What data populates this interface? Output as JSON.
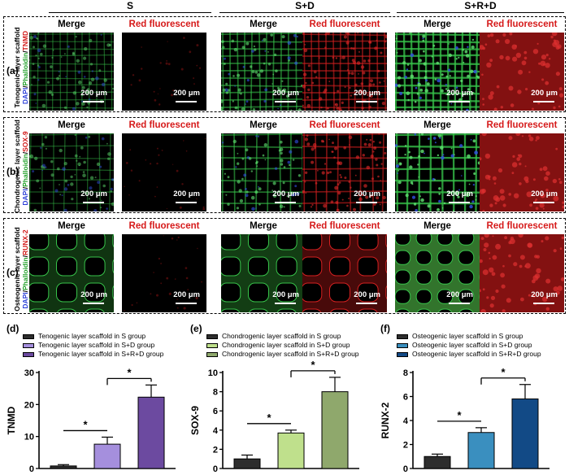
{
  "groups": [
    "S",
    "S+D",
    "S+R+D"
  ],
  "column_titles": {
    "merge": "Merge",
    "red": "Red fluorescent"
  },
  "scale_label": "200 μm",
  "rows": [
    {
      "label": "(a)",
      "scaffold": "Tenogenic layer scaffold",
      "stain_dapi": "DAPI",
      "stain_phalloidin": "Phalloidin",
      "stain_marker": "TNMD"
    },
    {
      "label": "(b)",
      "scaffold": "Chondrogenic layer scaffold",
      "stain_dapi": "DAPI",
      "stain_phalloidin": "Phalloidin",
      "stain_marker": "SOX-9"
    },
    {
      "label": "(c)",
      "scaffold": "Osteogenic layer scaffold",
      "stain_dapi": "DAPI",
      "stain_phalloidin": "Phalloidin",
      "stain_marker": "RUNX-2"
    }
  ],
  "chart_data": [
    {
      "panel": "(d)",
      "type": "bar",
      "ylabel": "TNMD",
      "ylim": [
        0,
        30
      ],
      "yticks": [
        0,
        10,
        20,
        30
      ],
      "categories": [
        "S",
        "S+D",
        "S+R+D"
      ],
      "values": [
        0.8,
        7.6,
        22.3
      ],
      "errors": [
        0.4,
        2.2,
        3.8
      ],
      "colors": [
        "#2d2d2d",
        "#a58fdd",
        "#6c4aa0"
      ],
      "legend": [
        "Tenogenic layer scaffold in S group",
        "Tenogenic layer scaffold in S+D group",
        "Tenogenic layer scaffold in S+R+D group"
      ],
      "significance": [
        {
          "from": 0,
          "to": 1,
          "label": "*"
        },
        {
          "from": 1,
          "to": 2,
          "label": "*"
        }
      ]
    },
    {
      "panel": "(e)",
      "type": "bar",
      "ylabel": "SOX-9",
      "ylim": [
        0,
        10
      ],
      "yticks": [
        0,
        2,
        4,
        6,
        8,
        10
      ],
      "categories": [
        "S",
        "S+D",
        "S+R+D"
      ],
      "values": [
        1.0,
        3.7,
        8.0
      ],
      "errors": [
        0.4,
        0.3,
        1.5
      ],
      "colors": [
        "#2d2d2d",
        "#bfe08c",
        "#8fa86c"
      ],
      "legend": [
        "Chondrogenic layer scaffold in S group",
        "Chondrogenic layer scaffold in S+D group",
        "Chondrogenic layer scaffold in S+R+D group"
      ],
      "significance": [
        {
          "from": 0,
          "to": 1,
          "label": "*"
        },
        {
          "from": 1,
          "to": 2,
          "label": "*"
        }
      ]
    },
    {
      "panel": "(f)",
      "type": "bar",
      "ylabel": "RUNX-2",
      "ylim": [
        0,
        8
      ],
      "yticks": [
        0,
        2,
        4,
        6,
        8
      ],
      "categories": [
        "S",
        "S+D",
        "S+R+D"
      ],
      "values": [
        1.0,
        3.0,
        5.8
      ],
      "errors": [
        0.2,
        0.4,
        1.2
      ],
      "colors": [
        "#2d2d2d",
        "#3a8fbf",
        "#124a86"
      ],
      "legend": [
        "Osteogenic layer scaffold in S group",
        "Osteogenic layer scaffold in S+D group",
        "Osteogenic layer scaffold in S+R+D group"
      ],
      "significance": [
        {
          "from": 0,
          "to": 1,
          "label": "*"
        },
        {
          "from": 1,
          "to": 2,
          "label": "*"
        }
      ]
    }
  ]
}
